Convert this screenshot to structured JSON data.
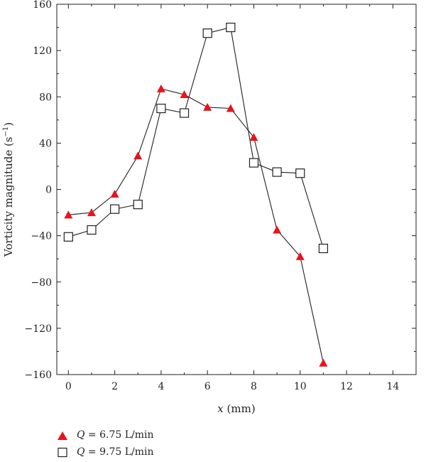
{
  "chart_data": {
    "type": "scatter",
    "xlabel_var": "x",
    "xlabel_unit": " (mm)",
    "ylabel_main": "Vorticity magnitude (s",
    "ylabel_sup": "−1",
    "ylabel_end": ")",
    "xlim": [
      -0.5,
      15
    ],
    "ylim": [
      -160,
      160
    ],
    "xticks": [
      0,
      2,
      4,
      6,
      8,
      10,
      12,
      14
    ],
    "yticks": [
      160,
      120,
      80,
      40,
      0,
      -40,
      -80,
      -120,
      -160
    ],
    "ytick_labels": [
      "160",
      "120",
      "80",
      "40",
      "0",
      "−40",
      "−80",
      "−120",
      "−160"
    ],
    "grid": false,
    "legend_position": "bottom-left, below plot",
    "series": [
      {
        "name_var": "Q",
        "name_value": " = 6.75 L/min",
        "marker": "filled-triangle",
        "color": "#e8141c",
        "x": [
          0,
          1,
          2,
          3,
          4,
          5,
          6,
          7,
          8,
          9,
          10,
          11
        ],
        "y": [
          -22,
          -20,
          -4,
          29,
          87,
          82,
          71,
          70,
          45,
          -35,
          -58,
          -150
        ]
      },
      {
        "name_var": "Q",
        "name_value": " = 9.75 L/min",
        "marker": "open-square",
        "color": "#231f20",
        "x": [
          0,
          1,
          2,
          3,
          4,
          5,
          6,
          7,
          8,
          9,
          10,
          11
        ],
        "y": [
          -41,
          -35,
          -17,
          -13,
          70,
          66,
          135,
          140,
          23,
          15,
          14,
          -51
        ]
      }
    ]
  }
}
